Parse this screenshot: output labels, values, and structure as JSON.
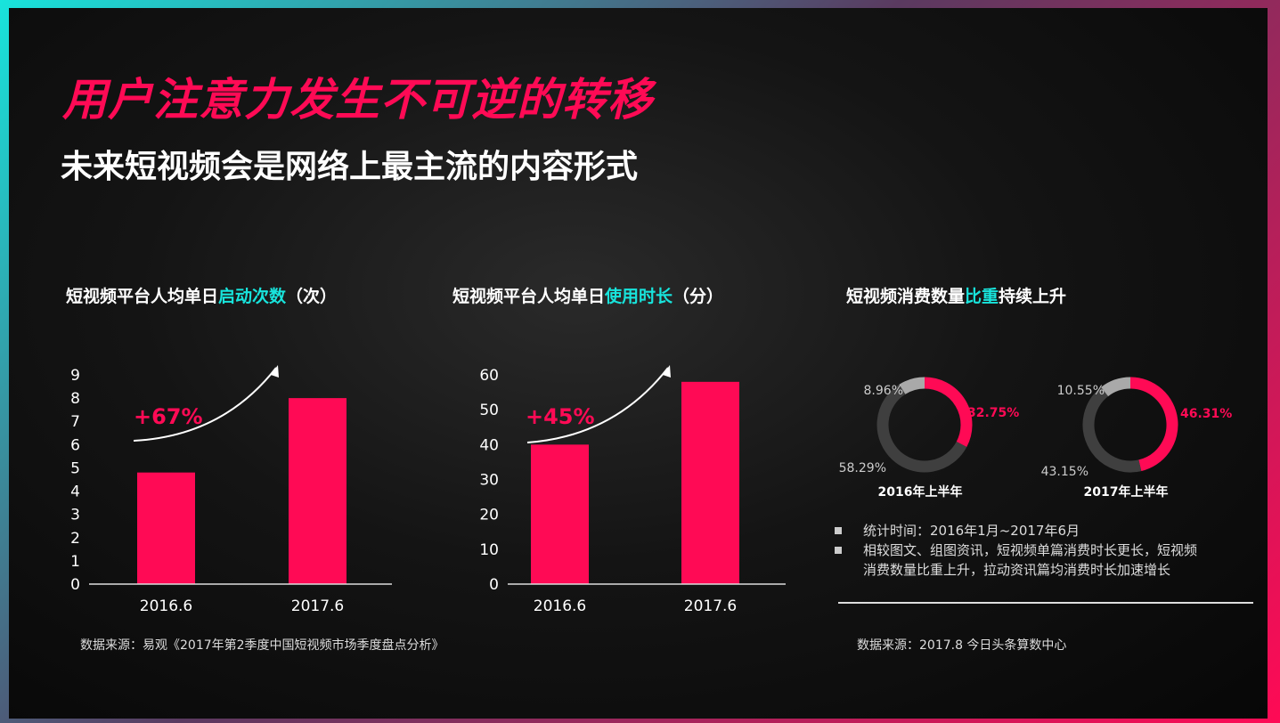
{
  "title": "用户注意力发生不可逆的转移",
  "subtitle": "未来短视频会是网络上最主流的内容形式",
  "colors": {
    "accent": "#ff0a55",
    "highlight": "#18e4dc",
    "dark_segment": "#3f3f3f",
    "light_segment": "#a9a9a9"
  },
  "chart_data": [
    {
      "type": "bar",
      "title_parts": [
        "短视频平台人均单日",
        "启动次数",
        "（次）"
      ],
      "categories": [
        "2016.6",
        "2017.6"
      ],
      "values": [
        4.8,
        8.0
      ],
      "ylim": [
        0,
        9
      ],
      "yticks": [
        0,
        1,
        2,
        3,
        4,
        5,
        6,
        7,
        8,
        9
      ],
      "annotation": "+67%"
    },
    {
      "type": "bar",
      "title_parts": [
        "短视频平台人均单日",
        "使用时长",
        "（分）"
      ],
      "categories": [
        "2016.6",
        "2017.6"
      ],
      "values": [
        40,
        58
      ],
      "ylim": [
        0,
        60
      ],
      "yticks": [
        0,
        10,
        20,
        30,
        40,
        50,
        60
      ],
      "annotation": "+45%"
    },
    {
      "type": "pie",
      "title_parts": [
        "短视频消费数量",
        "比重",
        "持续上升"
      ],
      "charts": [
        {
          "label": "2016年上半年",
          "slices": [
            {
              "value": 32.75,
              "label": "32.75%",
              "color": "#ff0a55"
            },
            {
              "value": 58.29,
              "label": "58.29%",
              "color": "#3f3f3f"
            },
            {
              "value": 8.96,
              "label": "8.96%",
              "color": "#a9a9a9"
            }
          ]
        },
        {
          "label": "2017年上半年",
          "slices": [
            {
              "value": 46.31,
              "label": "46.31%",
              "color": "#ff0a55"
            },
            {
              "value": 43.15,
              "label": "43.15%",
              "color": "#3f3f3f"
            },
            {
              "value": 10.55,
              "label": "10.55%",
              "color": "#a9a9a9"
            }
          ]
        }
      ]
    }
  ],
  "notes": [
    "统计时间：2016年1月~2017年6月",
    "相较图文、组图资讯，短视频单篇消费时长更长，短视频消费数量比重上升，拉动资讯篇均消费时长加速增长"
  ],
  "source_left": "数据来源：易观《2017年第2季度中国短视频市场季度盘点分析》",
  "source_right": "数据来源：2017.8 今日头条算数中心"
}
